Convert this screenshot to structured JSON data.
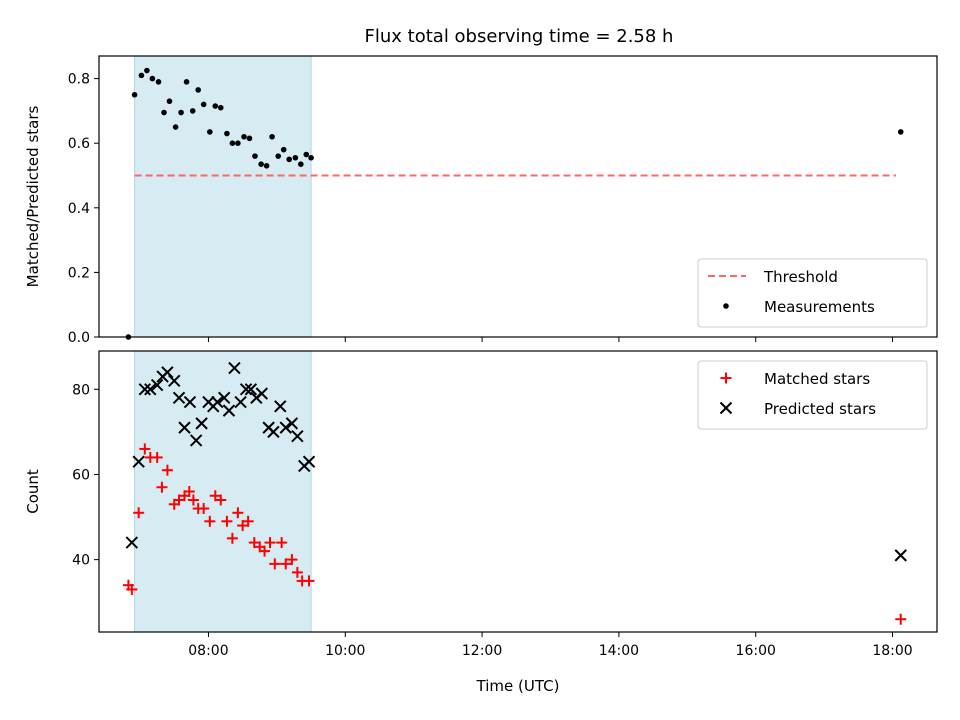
{
  "title": "Flux total observing time = 2.58 h",
  "chart_data": [
    {
      "type": "scatter",
      "ylabel": "Matched/Predicted stars",
      "xlabel": "",
      "xlim": [
        6.4,
        18.65
      ],
      "ylim": [
        0.0,
        0.87
      ],
      "yticks": [
        0.0,
        0.2,
        0.4,
        0.6,
        0.8
      ],
      "ytick_labels": [
        "0.0",
        "0.2",
        "0.4",
        "0.6",
        "0.8"
      ],
      "xticks": [
        8,
        10,
        12,
        14,
        16,
        18
      ],
      "grid": false,
      "legend_position": "lower-right",
      "shaded_region": {
        "x": [
          6.92,
          9.5
        ],
        "color": "#add8e6"
      },
      "threshold": {
        "name": "Threshold",
        "x": [
          6.92,
          18.05
        ],
        "y": 0.5,
        "color": "#ff6666"
      },
      "series": [
        {
          "name": "Measurements",
          "marker": "dot",
          "color": "#000000",
          "points": [
            [
              6.83,
              0.0
            ],
            [
              6.92,
              0.75
            ],
            [
              7.02,
              0.81
            ],
            [
              7.1,
              0.825
            ],
            [
              7.18,
              0.8
            ],
            [
              7.27,
              0.79
            ],
            [
              7.35,
              0.695
            ],
            [
              7.43,
              0.73
            ],
            [
              7.52,
              0.65
            ],
            [
              7.6,
              0.695
            ],
            [
              7.68,
              0.79
            ],
            [
              7.77,
              0.7
            ],
            [
              7.85,
              0.765
            ],
            [
              7.93,
              0.72
            ],
            [
              8.02,
              0.635
            ],
            [
              8.1,
              0.715
            ],
            [
              8.18,
              0.71
            ],
            [
              8.27,
              0.63
            ],
            [
              8.35,
              0.6
            ],
            [
              8.43,
              0.6
            ],
            [
              8.52,
              0.62
            ],
            [
              8.6,
              0.615
            ],
            [
              8.68,
              0.56
            ],
            [
              8.77,
              0.535
            ],
            [
              8.85,
              0.53
            ],
            [
              8.93,
              0.62
            ],
            [
              9.02,
              0.56
            ],
            [
              9.1,
              0.58
            ],
            [
              9.18,
              0.55
            ],
            [
              9.27,
              0.555
            ],
            [
              9.35,
              0.535
            ],
            [
              9.43,
              0.565
            ],
            [
              9.5,
              0.555
            ],
            [
              18.12,
              0.635
            ]
          ]
        }
      ]
    },
    {
      "type": "scatter",
      "ylabel": "Count",
      "xlabel": "Time (UTC)",
      "xlim": [
        6.4,
        18.65
      ],
      "ylim": [
        23,
        89
      ],
      "yticks": [
        40,
        60,
        80
      ],
      "ytick_labels": [
        "40",
        "60",
        "80"
      ],
      "xticks": [
        8,
        10,
        12,
        14,
        16,
        18
      ],
      "xtick_labels": [
        "08:00",
        "10:00",
        "12:00",
        "14:00",
        "16:00",
        "18:00"
      ],
      "grid": false,
      "legend_position": "upper-right",
      "shaded_region": {
        "x": [
          6.92,
          9.5
        ],
        "color": "#add8e6"
      },
      "series": [
        {
          "name": "Matched stars",
          "marker": "plus",
          "color": "#ff0000",
          "points": [
            [
              6.83,
              34
            ],
            [
              6.88,
              33
            ],
            [
              6.98,
              51
            ],
            [
              7.07,
              66
            ],
            [
              7.15,
              64
            ],
            [
              7.25,
              64
            ],
            [
              7.32,
              57
            ],
            [
              7.4,
              61
            ],
            [
              7.5,
              53
            ],
            [
              7.57,
              54
            ],
            [
              7.65,
              55
            ],
            [
              7.72,
              56
            ],
            [
              7.78,
              54
            ],
            [
              7.85,
              52
            ],
            [
              7.93,
              52
            ],
            [
              8.02,
              49
            ],
            [
              8.1,
              55
            ],
            [
              8.18,
              54
            ],
            [
              8.27,
              49
            ],
            [
              8.35,
              45
            ],
            [
              8.43,
              51
            ],
            [
              8.5,
              48
            ],
            [
              8.58,
              49
            ],
            [
              8.67,
              44
            ],
            [
              8.75,
              43
            ],
            [
              8.82,
              42
            ],
            [
              8.9,
              44
            ],
            [
              8.97,
              39
            ],
            [
              9.07,
              44
            ],
            [
              9.13,
              39
            ],
            [
              9.22,
              40
            ],
            [
              9.3,
              37
            ],
            [
              9.37,
              35
            ],
            [
              9.47,
              35
            ],
            [
              18.12,
              26
            ]
          ]
        },
        {
          "name": "Predicted stars",
          "marker": "x",
          "color": "#000000",
          "points": [
            [
              6.88,
              44
            ],
            [
              6.98,
              63
            ],
            [
              7.07,
              80
            ],
            [
              7.15,
              80
            ],
            [
              7.25,
              81
            ],
            [
              7.33,
              83
            ],
            [
              7.4,
              84
            ],
            [
              7.5,
              82
            ],
            [
              7.57,
              78
            ],
            [
              7.65,
              71
            ],
            [
              7.73,
              77
            ],
            [
              7.82,
              68
            ],
            [
              7.9,
              72
            ],
            [
              8.0,
              77
            ],
            [
              8.07,
              76
            ],
            [
              8.13,
              77
            ],
            [
              8.23,
              78
            ],
            [
              8.3,
              75
            ],
            [
              8.38,
              85
            ],
            [
              8.47,
              77
            ],
            [
              8.55,
              80
            ],
            [
              8.62,
              80
            ],
            [
              8.7,
              78
            ],
            [
              8.78,
              79
            ],
            [
              8.88,
              71
            ],
            [
              8.95,
              70
            ],
            [
              9.05,
              76
            ],
            [
              9.13,
              71
            ],
            [
              9.22,
              72
            ],
            [
              9.3,
              69
            ],
            [
              9.4,
              62
            ],
            [
              9.47,
              63
            ],
            [
              18.12,
              41
            ]
          ]
        }
      ]
    }
  ]
}
